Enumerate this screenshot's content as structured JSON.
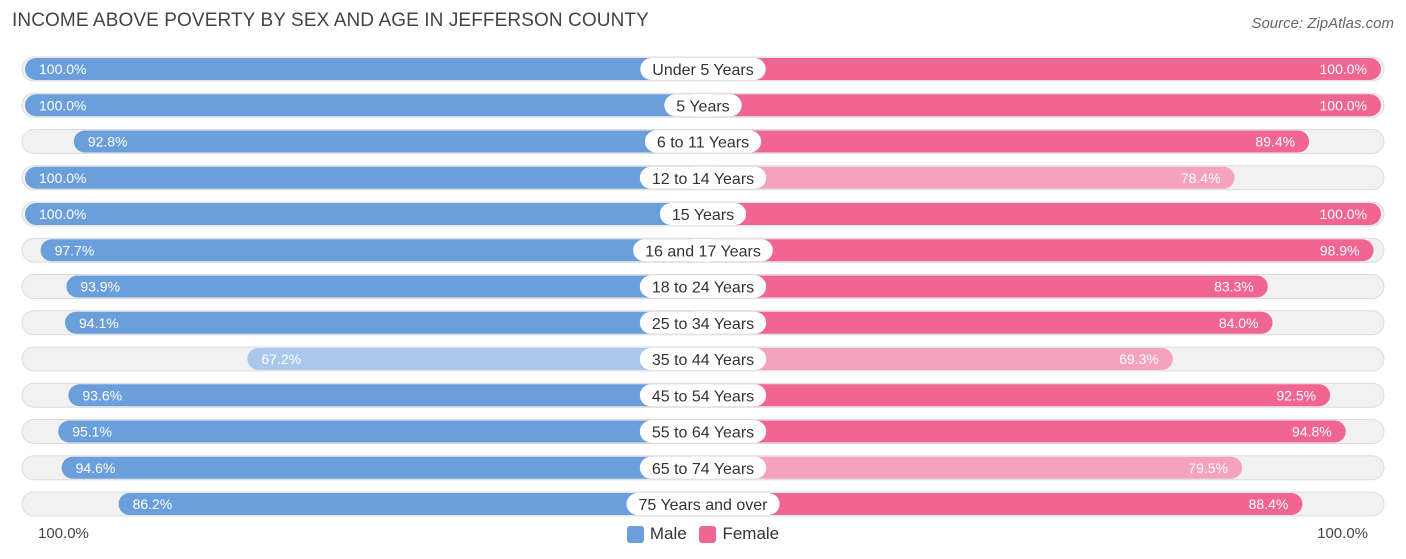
{
  "title": "INCOME ABOVE POVERTY BY SEX AND AGE IN JEFFERSON COUNTY",
  "source": "Source: ZipAtlas.com",
  "colors": {
    "male": "#6a9fdb",
    "male_light": "#a9c8ec",
    "female": "#f06591",
    "female_light": "#f5a2bf",
    "track": "#f1f1f1",
    "track_border": "#dcdcdc"
  },
  "chart_data": {
    "type": "bar",
    "orientation": "horizontal-butterfly",
    "title": "INCOME ABOVE POVERTY BY SEX AND AGE IN JEFFERSON COUNTY",
    "categories": [
      "Under 5 Years",
      "5 Years",
      "6 to 11 Years",
      "12 to 14 Years",
      "15 Years",
      "16 and 17 Years",
      "18 to 24 Years",
      "25 to 34 Years",
      "35 to 44 Years",
      "45 to 54 Years",
      "55 to 64 Years",
      "65 to 74 Years",
      "75 Years and over"
    ],
    "series": [
      {
        "name": "Male",
        "values": [
          100.0,
          100.0,
          92.8,
          100.0,
          100.0,
          97.7,
          93.9,
          94.1,
          67.2,
          93.6,
          95.1,
          94.6,
          86.2
        ],
        "labels": [
          "100.0%",
          "100.0%",
          "92.8%",
          "100.0%",
          "100.0%",
          "97.7%",
          "93.9%",
          "94.1%",
          "67.2%",
          "93.6%",
          "95.1%",
          "94.6%",
          "86.2%"
        ]
      },
      {
        "name": "Female",
        "values": [
          100.0,
          100.0,
          89.4,
          78.4,
          100.0,
          98.9,
          83.3,
          84.0,
          69.3,
          92.5,
          94.8,
          79.5,
          88.4
        ],
        "labels": [
          "100.0%",
          "100.0%",
          "89.4%",
          "78.4%",
          "100.0%",
          "98.9%",
          "83.3%",
          "84.0%",
          "69.3%",
          "92.5%",
          "94.8%",
          "79.5%",
          "88.4%"
        ]
      }
    ],
    "xlim": [
      0,
      100
    ],
    "axis_labels": {
      "left": "100.0%",
      "right": "100.0%"
    },
    "legend": [
      "Male",
      "Female"
    ],
    "legend_position": "bottom-center"
  }
}
